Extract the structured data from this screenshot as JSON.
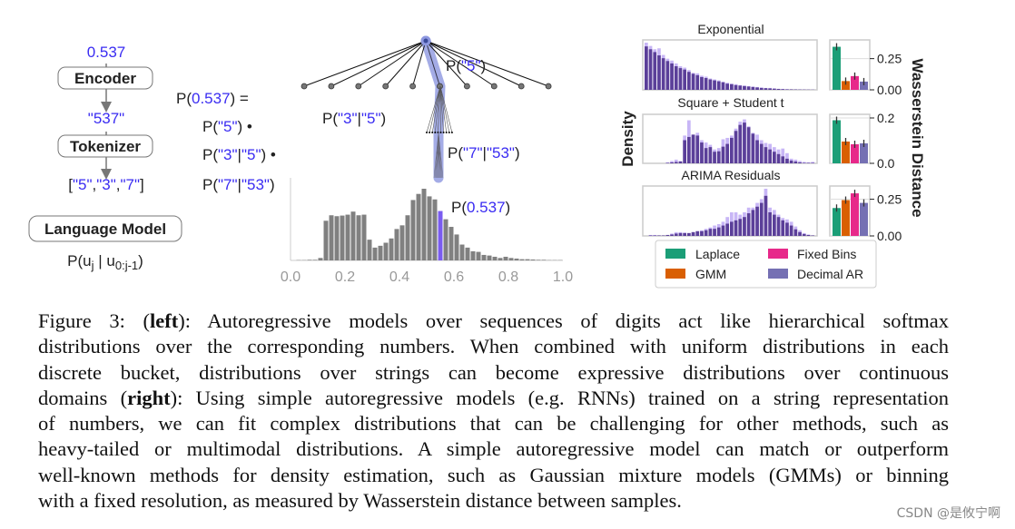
{
  "colors": {
    "blue": "#3a2cf2",
    "gray_bar": "#808080",
    "highlight_bar": "#7a5cf0",
    "tree_highlight": "#8d97e0",
    "model_bar": "#5b3f99",
    "true_bar": "#c8b6f6",
    "laplace": "#1b9e77",
    "gmm": "#d95f02",
    "fixed_bins": "#e7298a",
    "decimal_ar": "#7570b3"
  },
  "left": {
    "value": "0.537",
    "encoder_label": "Encoder",
    "string": "\"537\"",
    "tokenizer_label": "Tokenizer",
    "tokens": [
      "[",
      "\"5\"",
      ",",
      "\"3\"",
      ",",
      "\"7\"",
      "]"
    ],
    "lm_label": "Language Model",
    "lm_prob": {
      "p": "P(u",
      "sub1": "j",
      "mid": " | u",
      "sub2": "0:j-1",
      "end": ")"
    }
  },
  "factorization": {
    "lhs": {
      "p": "P(",
      "v": "0.537",
      "e": ") ="
    },
    "terms": [
      {
        "p": "P(",
        "a": "\"5\"",
        "mid": "",
        "b": "",
        "e": ") •"
      },
      {
        "p": "P(",
        "a": "\"3\"",
        "mid": "|",
        "b": "\"5\"",
        "e": ") •"
      },
      {
        "p": "P(",
        "a": "\"7\"",
        "mid": "|",
        "b": "\"53\"",
        "e": ")"
      }
    ]
  },
  "tree_labels": {
    "p5": {
      "p": "P(",
      "a": "\"5\"",
      "e": ")"
    },
    "p3_5": {
      "p": "P(",
      "a": "\"3\"",
      "mid": "|",
      "b": "\"5\"",
      "e": ")"
    },
    "p7_53": {
      "p": "P(",
      "a": "\"7\"",
      "mid": "|",
      "b": "\"53\"",
      "e": ")"
    },
    "p0537": {
      "p": "P(",
      "a": "0.537",
      "e": ")"
    }
  },
  "chart_data": [
    {
      "type": "bar",
      "bin_width": 0.02,
      "x_range": [
        0.0,
        1.0
      ],
      "xticks": [
        "0.0",
        "0.2",
        "0.4",
        "0.6",
        "0.8",
        "1.0"
      ],
      "highlight_bin": 27,
      "values": [
        0,
        1,
        1,
        2,
        2,
        8,
        130,
        148,
        145,
        147,
        150,
        160,
        148,
        150,
        68,
        42,
        48,
        58,
        72,
        103,
        115,
        148,
        198,
        218,
        235,
        210,
        200,
        162,
        135,
        110,
        85,
        52,
        42,
        30,
        28,
        18,
        16,
        12,
        8,
        12,
        8,
        6,
        4,
        4,
        3,
        2,
        2,
        1,
        1,
        1
      ]
    },
    {
      "type": "bar",
      "panels": [
        {
          "title": "Exponential",
          "true": [
            1.0,
            0.93,
            0.86,
            0.88,
            0.74,
            0.66,
            0.62,
            0.56,
            0.5,
            0.47,
            0.42,
            0.36,
            0.35,
            0.3,
            0.28,
            0.24,
            0.22,
            0.2,
            0.17,
            0.15,
            0.13,
            0.12,
            0.1,
            0.09,
            0.08,
            0.07,
            0.06,
            0.05,
            0.04,
            0.04,
            0.03,
            0.02,
            0.02,
            0.015,
            0.01,
            0.01,
            0.008,
            0.006,
            0.005,
            0.004
          ],
          "model": [
            0.92,
            0.86,
            0.8,
            0.73,
            0.67,
            0.61,
            0.56,
            0.5,
            0.46,
            0.43,
            0.38,
            0.34,
            0.31,
            0.27,
            0.25,
            0.22,
            0.2,
            0.18,
            0.16,
            0.13,
            0.12,
            0.1,
            0.09,
            0.08,
            0.07,
            0.06,
            0.05,
            0.04,
            0.035,
            0.03,
            0.025,
            0.02,
            0.015,
            0.01,
            0.01,
            0.008,
            0.006,
            0.005,
            0.004,
            0.003
          ]
        },
        {
          "title": "Square + Student t",
          "true": [
            0,
            0,
            0,
            0,
            0,
            0.02,
            0.05,
            0.08,
            0.05,
            0.6,
            0.93,
            0.62,
            0.66,
            0.5,
            0.45,
            0.4,
            0.3,
            0.33,
            0.52,
            0.55,
            0.6,
            0.75,
            0.9,
            0.95,
            0.8,
            0.66,
            0.62,
            0.5,
            0.44,
            0.42,
            0.35,
            0.3,
            0.32,
            0.22,
            0.1,
            0.08,
            0.05,
            0.03,
            0.02,
            0.03
          ],
          "model": [
            0,
            0,
            0,
            0,
            0,
            0.01,
            0.02,
            0.03,
            0.04,
            0.5,
            0.57,
            0.62,
            0.6,
            0.45,
            0.33,
            0.35,
            0.25,
            0.26,
            0.36,
            0.42,
            0.55,
            0.7,
            0.83,
            0.88,
            0.78,
            0.64,
            0.5,
            0.42,
            0.35,
            0.3,
            0.25,
            0.2,
            0.15,
            0.1,
            0.06,
            0.04,
            0.02,
            0.01,
            0.01,
            0.01
          ]
        },
        {
          "title": "ARIMA Residuals",
          "true": [
            0,
            0.02,
            0.02,
            0.01,
            0.01,
            0.02,
            0.05,
            0.08,
            0.08,
            0.07,
            0.06,
            0.08,
            0.1,
            0.12,
            0.15,
            0.18,
            0.22,
            0.25,
            0.3,
            0.4,
            0.5,
            0.5,
            0.45,
            0.5,
            0.6,
            0.6,
            0.7,
            0.78,
            1.0,
            0.6,
            0.55,
            0.45,
            0.38,
            0.35,
            0.3,
            0.2,
            0.12,
            0.06,
            0.03,
            0.01
          ],
          "model": [
            0,
            0.01,
            0.01,
            0.01,
            0.01,
            0.02,
            0.03,
            0.05,
            0.06,
            0.06,
            0.06,
            0.08,
            0.1,
            0.1,
            0.12,
            0.15,
            0.15,
            0.18,
            0.22,
            0.26,
            0.3,
            0.33,
            0.36,
            0.4,
            0.48,
            0.55,
            0.62,
            0.7,
            0.85,
            0.5,
            0.45,
            0.4,
            0.33,
            0.28,
            0.22,
            0.14,
            0.08,
            0.04,
            0.02,
            0.01
          ]
        }
      ],
      "ylabel": "Density"
    },
    {
      "type": "bar",
      "ylabel": "Wasserstein Distance",
      "categories": [
        "Laplace",
        "GMM",
        "Fixed Bins",
        "Decimal AR"
      ],
      "panels": [
        {
          "values": [
            0.345,
            0.07,
            0.11,
            0.066
          ],
          "ylim": [
            0,
            0.4
          ],
          "yticks": [
            "0.00",
            "0.25"
          ],
          "ytick_values": [
            0,
            0.25
          ]
        },
        {
          "values": [
            0.19,
            0.096,
            0.084,
            0.088
          ],
          "ylim": [
            0,
            0.216
          ],
          "yticks": [
            "0.0",
            "0.2"
          ],
          "ytick_values": [
            0,
            0.2
          ]
        },
        {
          "values": [
            0.19,
            0.244,
            0.29,
            0.225
          ],
          "ylim": [
            0,
            0.34
          ],
          "yticks": [
            "0.00",
            "0.25"
          ],
          "ytick_values": [
            0,
            0.25
          ]
        }
      ],
      "legend": [
        "Laplace",
        "GMM",
        "Fixed Bins",
        "Decimal AR"
      ],
      "legend_placement": "bottom"
    }
  ],
  "caption": [
    [
      {
        "t": "Figure 3: ("
      },
      {
        "t": "left",
        "b": true
      },
      {
        "t": "):  Autoregressive models over sequences of digits act like hierarchical softmax"
      }
    ],
    [
      {
        "t": "distributions over the corresponding numbers. When combined with uniform distributions in each"
      }
    ],
    [
      {
        "t": "discrete bucket, distributions over strings can become expressive distributions over continuous"
      }
    ],
    [
      {
        "t": "domains ("
      },
      {
        "t": "right",
        "b": true
      },
      {
        "t": "): Using simple autoregressive models (e.g. RNNs) trained on a string representation"
      }
    ],
    [
      {
        "t": "of numbers, we can fit complex distributions that can be challenging for other methods, such as"
      }
    ],
    [
      {
        "t": "heavy-tailed or multimodal distributions. A simple autoregressive model can match or outperform"
      }
    ],
    [
      {
        "t": "well-known methods for density estimation, such as Gaussian mixture models (GMMs) or binning"
      }
    ],
    [
      {
        "t": "with a fixed resolution, as measured by Wasserstein distance between samples."
      }
    ]
  ],
  "watermark": "CSDN @是攸宁啊"
}
